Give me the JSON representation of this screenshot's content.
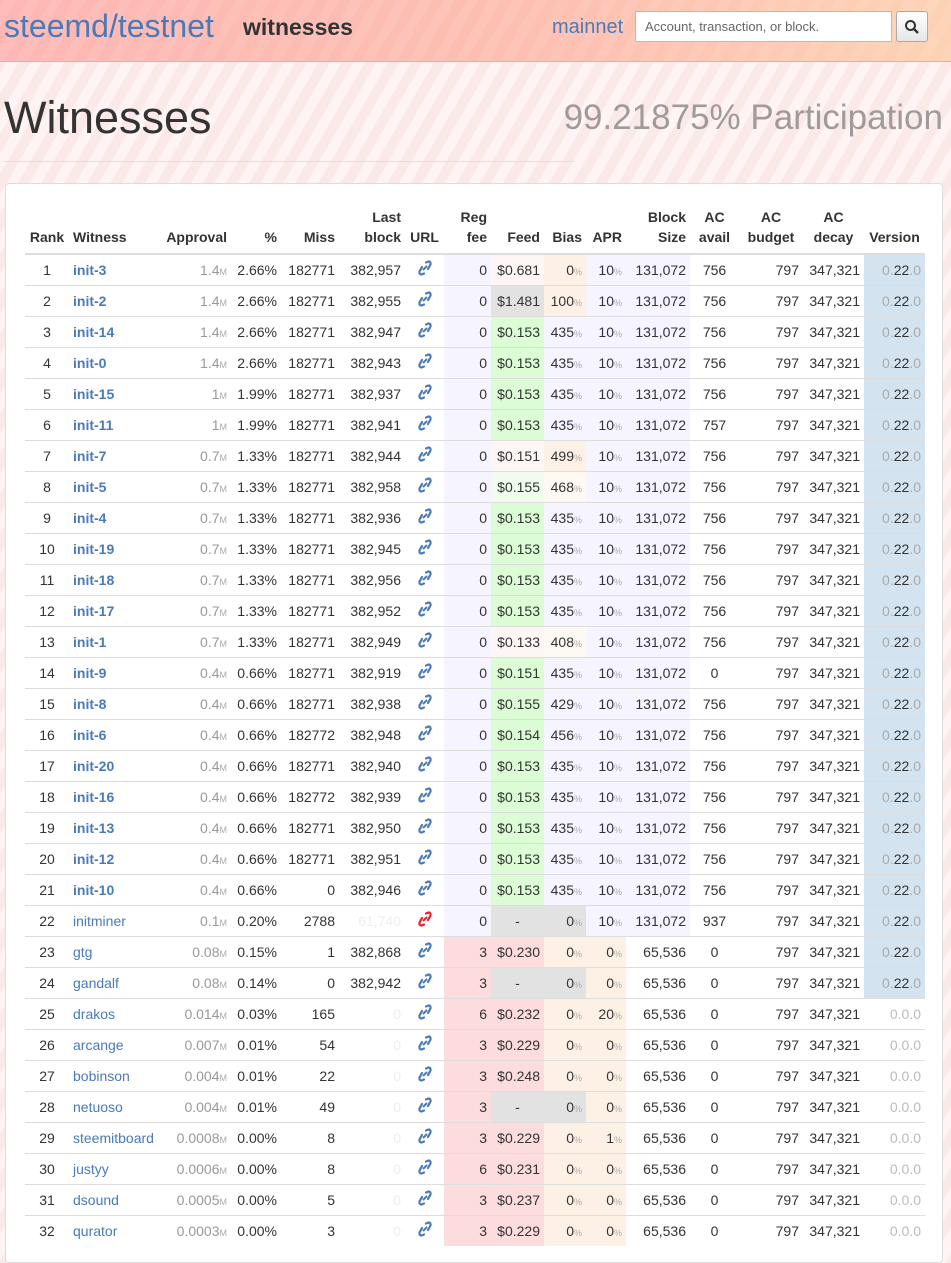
{
  "header": {
    "brand": "steemd/testnet",
    "section": "witnesses",
    "network_link": "mainnet",
    "search_placeholder": "Account, transaction, or block.",
    "search_icon": "search-icon"
  },
  "page": {
    "title": "Witnesses",
    "participation": "99.21875% Participation"
  },
  "colors": {
    "link": "#4a7ab8",
    "lavender": "#f5f4ff",
    "pink": "#fddcdd",
    "peach": "#fdf1e6",
    "faintpeach": "#fef8f2",
    "green": "#dcfcd6",
    "faintgreen": "#f0fdee",
    "faintpink": "#fdf6f4",
    "grey": "#e2e2e2",
    "blue": "#d3e4f0",
    "red": "#e8202a"
  },
  "table": {
    "headers": [
      "Rank",
      "Witness",
      "Approval",
      "%",
      "Miss",
      "Last block",
      "URL",
      "Reg fee",
      "Feed",
      "Bias",
      "APR",
      "Block Size",
      "AC avail",
      "AC budget",
      "AC decay",
      "Version"
    ],
    "unit_m": "M",
    "unit_pct": "%",
    "rows": [
      {
        "r": "1",
        "n": "init-3",
        "a": "1.4",
        "p": "2.66%",
        "m": "182771",
        "lb": "382,957",
        "f": "0",
        "fd": "$0.681",
        "fb": "faintpink",
        "bi": "0",
        "bb": "peach",
        "apr": "10",
        "bs": "131,072",
        "av": "756",
        "bu": "797",
        "de": "347,321",
        "v": [
          "0.",
          "22",
          ".0"
        ]
      },
      {
        "r": "2",
        "n": "init-2",
        "a": "1.4",
        "p": "2.66%",
        "m": "182771",
        "lb": "382,955",
        "f": "0",
        "fd": "$1.481",
        "fb": "grey",
        "bi": "100",
        "bb": "peach",
        "apr": "10",
        "bs": "131,072",
        "av": "756",
        "bu": "797",
        "de": "347,321",
        "v": [
          "0.",
          "22",
          ".0"
        ]
      },
      {
        "r": "3",
        "n": "init-14",
        "a": "1.4",
        "p": "2.66%",
        "m": "182771",
        "lb": "382,947",
        "f": "0",
        "fd": "$0.153",
        "fb": "green",
        "bi": "435",
        "bb": "lavender",
        "apr": "10",
        "bs": "131,072",
        "av": "756",
        "bu": "797",
        "de": "347,321",
        "v": [
          "0.",
          "22",
          ".0"
        ]
      },
      {
        "r": "4",
        "n": "init-0",
        "a": "1.4",
        "p": "2.66%",
        "m": "182771",
        "lb": "382,943",
        "f": "0",
        "fd": "$0.153",
        "fb": "green",
        "bi": "435",
        "bb": "lavender",
        "apr": "10",
        "bs": "131,072",
        "av": "756",
        "bu": "797",
        "de": "347,321",
        "v": [
          "0.",
          "22",
          ".0"
        ]
      },
      {
        "r": "5",
        "n": "init-15",
        "a": "1",
        "p": "1.99%",
        "m": "182771",
        "lb": "382,937",
        "f": "0",
        "fd": "$0.153",
        "fb": "green",
        "bi": "435",
        "bb": "lavender",
        "apr": "10",
        "bs": "131,072",
        "av": "756",
        "bu": "797",
        "de": "347,321",
        "v": [
          "0.",
          "22",
          ".0"
        ]
      },
      {
        "r": "6",
        "n": "init-11",
        "a": "1",
        "p": "1.99%",
        "m": "182771",
        "lb": "382,941",
        "f": "0",
        "fd": "$0.153",
        "fb": "green",
        "bi": "435",
        "bb": "lavender",
        "apr": "10",
        "bs": "131,072",
        "av": "757",
        "bu": "797",
        "de": "347,321",
        "v": [
          "0.",
          "22",
          ".0"
        ]
      },
      {
        "r": "7",
        "n": "init-7",
        "a": "0.7",
        "p": "1.33%",
        "m": "182771",
        "lb": "382,944",
        "f": "0",
        "fd": "$0.151",
        "fb": "faintpink",
        "bi": "499",
        "bb": "peach",
        "apr": "10",
        "bs": "131,072",
        "av": "756",
        "bu": "797",
        "de": "347,321",
        "v": [
          "0.",
          "22",
          ".0"
        ]
      },
      {
        "r": "8",
        "n": "init-5",
        "a": "0.7",
        "p": "1.33%",
        "m": "182771",
        "lb": "382,958",
        "f": "0",
        "fd": "$0.155",
        "fb": "faintgreen",
        "bi": "468",
        "bb": "faintpeach",
        "apr": "10",
        "bs": "131,072",
        "av": "756",
        "bu": "797",
        "de": "347,321",
        "v": [
          "0.",
          "22",
          ".0"
        ]
      },
      {
        "r": "9",
        "n": "init-4",
        "a": "0.7",
        "p": "1.33%",
        "m": "182771",
        "lb": "382,936",
        "f": "0",
        "fd": "$0.153",
        "fb": "green",
        "bi": "435",
        "bb": "lavender",
        "apr": "10",
        "bs": "131,072",
        "av": "756",
        "bu": "797",
        "de": "347,321",
        "v": [
          "0.",
          "22",
          ".0"
        ]
      },
      {
        "r": "10",
        "n": "init-19",
        "a": "0.7",
        "p": "1.33%",
        "m": "182771",
        "lb": "382,945",
        "f": "0",
        "fd": "$0.153",
        "fb": "green",
        "bi": "435",
        "bb": "lavender",
        "apr": "10",
        "bs": "131,072",
        "av": "756",
        "bu": "797",
        "de": "347,321",
        "v": [
          "0.",
          "22",
          ".0"
        ]
      },
      {
        "r": "11",
        "n": "init-18",
        "a": "0.7",
        "p": "1.33%",
        "m": "182771",
        "lb": "382,956",
        "f": "0",
        "fd": "$0.153",
        "fb": "green",
        "bi": "435",
        "bb": "lavender",
        "apr": "10",
        "bs": "131,072",
        "av": "756",
        "bu": "797",
        "de": "347,321",
        "v": [
          "0.",
          "22",
          ".0"
        ]
      },
      {
        "r": "12",
        "n": "init-17",
        "a": "0.7",
        "p": "1.33%",
        "m": "182771",
        "lb": "382,952",
        "f": "0",
        "fd": "$0.153",
        "fb": "green",
        "bi": "435",
        "bb": "lavender",
        "apr": "10",
        "bs": "131,072",
        "av": "756",
        "bu": "797",
        "de": "347,321",
        "v": [
          "0.",
          "22",
          ".0"
        ]
      },
      {
        "r": "13",
        "n": "init-1",
        "a": "0.7",
        "p": "1.33%",
        "m": "182771",
        "lb": "382,949",
        "f": "0",
        "fd": "$0.133",
        "fb": "faintpink",
        "bi": "408",
        "bb": "faintpeach",
        "apr": "10",
        "bs": "131,072",
        "av": "756",
        "bu": "797",
        "de": "347,321",
        "v": [
          "0.",
          "22",
          ".0"
        ]
      },
      {
        "r": "14",
        "n": "init-9",
        "a": "0.4",
        "p": "0.66%",
        "m": "182771",
        "lb": "382,919",
        "f": "0",
        "fd": "$0.151",
        "fb": "green",
        "bi": "435",
        "bb": "lavender",
        "apr": "10",
        "bs": "131,072",
        "av": "0",
        "bu": "797",
        "de": "347,321",
        "v": [
          "0.",
          "22",
          ".0"
        ]
      },
      {
        "r": "15",
        "n": "init-8",
        "a": "0.4",
        "p": "0.66%",
        "m": "182771",
        "lb": "382,938",
        "f": "0",
        "fd": "$0.155",
        "fb": "green",
        "bi": "429",
        "bb": "lavender",
        "apr": "10",
        "bs": "131,072",
        "av": "756",
        "bu": "797",
        "de": "347,321",
        "v": [
          "0.",
          "22",
          ".0"
        ]
      },
      {
        "r": "16",
        "n": "init-6",
        "a": "0.4",
        "p": "0.66%",
        "m": "182772",
        "lb": "382,948",
        "f": "0",
        "fd": "$0.154",
        "fb": "green",
        "bi": "456",
        "bb": "lavender",
        "apr": "10",
        "bs": "131,072",
        "av": "756",
        "bu": "797",
        "de": "347,321",
        "v": [
          "0.",
          "22",
          ".0"
        ]
      },
      {
        "r": "17",
        "n": "init-20",
        "a": "0.4",
        "p": "0.66%",
        "m": "182771",
        "lb": "382,940",
        "f": "0",
        "fd": "$0.153",
        "fb": "green",
        "bi": "435",
        "bb": "lavender",
        "apr": "10",
        "bs": "131,072",
        "av": "756",
        "bu": "797",
        "de": "347,321",
        "v": [
          "0.",
          "22",
          ".0"
        ]
      },
      {
        "r": "18",
        "n": "init-16",
        "a": "0.4",
        "p": "0.66%",
        "m": "182772",
        "lb": "382,939",
        "f": "0",
        "fd": "$0.153",
        "fb": "green",
        "bi": "435",
        "bb": "lavender",
        "apr": "10",
        "bs": "131,072",
        "av": "756",
        "bu": "797",
        "de": "347,321",
        "v": [
          "0.",
          "22",
          ".0"
        ]
      },
      {
        "r": "19",
        "n": "init-13",
        "a": "0.4",
        "p": "0.66%",
        "m": "182771",
        "lb": "382,950",
        "f": "0",
        "fd": "$0.153",
        "fb": "green",
        "bi": "435",
        "bb": "lavender",
        "apr": "10",
        "bs": "131,072",
        "av": "756",
        "bu": "797",
        "de": "347,321",
        "v": [
          "0.",
          "22",
          ".0"
        ]
      },
      {
        "r": "20",
        "n": "init-12",
        "a": "0.4",
        "p": "0.66%",
        "m": "182771",
        "lb": "382,951",
        "f": "0",
        "fd": "$0.153",
        "fb": "green",
        "bi": "435",
        "bb": "lavender",
        "apr": "10",
        "bs": "131,072",
        "av": "756",
        "bu": "797",
        "de": "347,321",
        "v": [
          "0.",
          "22",
          ".0"
        ]
      },
      {
        "r": "21",
        "n": "init-10",
        "a": "0.4",
        "p": "0.66%",
        "m": "0",
        "lb": "382,946",
        "f": "0",
        "fd": "$0.153",
        "fb": "green",
        "bi": "435",
        "bb": "lavender",
        "apr": "10",
        "bs": "131,072",
        "av": "756",
        "bu": "797",
        "de": "347,321",
        "v": [
          "0.",
          "22",
          ".0"
        ]
      },
      {
        "r": "22",
        "n": "initminer",
        "a": "0.1",
        "p": "0.20%",
        "m": "2788",
        "lb": "61,740",
        "stale": true,
        "f": "0",
        "fd": "-",
        "fb": "grey",
        "bi": "0",
        "bb": "grey",
        "apr": "10",
        "bs": "131,072",
        "av": "937",
        "bu": "797",
        "de": "347,321",
        "v": [
          "0.",
          "22",
          ".0"
        ]
      },
      {
        "r": "23",
        "n": "gtg",
        "a": "0.08",
        "p": "0.15%",
        "m": "1",
        "lb": "382,868",
        "f": "3",
        "fd": "$0.230",
        "fb": "pink",
        "bi": "0",
        "bb": "peach",
        "apr": "0",
        "bs": "65,536",
        "av": "0",
        "bu": "797",
        "de": "347,321",
        "v": [
          "0.",
          "22",
          ".0"
        ]
      },
      {
        "r": "24",
        "n": "gandalf",
        "a": "0.08",
        "p": "0.14%",
        "m": "0",
        "lb": "382,942",
        "f": "3",
        "fd": "-",
        "fb": "grey",
        "bi": "0",
        "bb": "grey",
        "apr": "0",
        "bs": "65,536",
        "av": "0",
        "bu": "797",
        "de": "347,321",
        "v": [
          "0.",
          "22",
          ".0"
        ]
      },
      {
        "r": "25",
        "n": "drakos",
        "a": "0.014",
        "p": "0.03%",
        "m": "165",
        "lb": "0",
        "stale": true,
        "f": "6",
        "fd": "$0.232",
        "fb": "pink",
        "bi": "0",
        "bb": "peach",
        "apr": "20",
        "bs": "65,536",
        "av": "0",
        "bu": "797",
        "de": "347,321",
        "v": [
          "0.0.0"
        ]
      },
      {
        "r": "26",
        "n": "arcange",
        "a": "0.007",
        "p": "0.01%",
        "m": "54",
        "lb": "0",
        "stale": true,
        "f": "3",
        "fd": "$0.229",
        "fb": "pink",
        "bi": "0",
        "bb": "peach",
        "apr": "0",
        "bs": "65,536",
        "av": "0",
        "bu": "797",
        "de": "347,321",
        "v": [
          "0.0.0"
        ]
      },
      {
        "r": "27",
        "n": "bobinson",
        "a": "0.004",
        "p": "0.01%",
        "m": "22",
        "lb": "0",
        "stale": true,
        "f": "3",
        "fd": "$0.248",
        "fb": "pink",
        "bi": "0",
        "bb": "peach",
        "apr": "0",
        "bs": "65,536",
        "av": "0",
        "bu": "797",
        "de": "347,321",
        "v": [
          "0.0.0"
        ]
      },
      {
        "r": "28",
        "n": "netuoso",
        "a": "0.004",
        "p": "0.01%",
        "m": "49",
        "lb": "0",
        "stale": true,
        "f": "3",
        "fd": "-",
        "fb": "grey",
        "bi": "0",
        "bb": "grey",
        "apr": "0",
        "bs": "65,536",
        "av": "0",
        "bu": "797",
        "de": "347,321",
        "v": [
          "0.0.0"
        ]
      },
      {
        "r": "29",
        "n": "steemitboard",
        "a": "0.0008",
        "p": "0.00%",
        "m": "8",
        "lb": "0",
        "stale": true,
        "f": "3",
        "fd": "$0.229",
        "fb": "pink",
        "bi": "0",
        "bb": "peach",
        "apr": "1",
        "bs": "65,536",
        "av": "0",
        "bu": "797",
        "de": "347,321",
        "v": [
          "0.0.0"
        ]
      },
      {
        "r": "30",
        "n": "justyy",
        "a": "0.0006",
        "p": "0.00%",
        "m": "8",
        "lb": "0",
        "stale": true,
        "f": "6",
        "fd": "$0.231",
        "fb": "pink",
        "bi": "0",
        "bb": "peach",
        "apr": "0",
        "bs": "65,536",
        "av": "0",
        "bu": "797",
        "de": "347,321",
        "v": [
          "0.0.0"
        ]
      },
      {
        "r": "31",
        "n": "dsound",
        "a": "0.0005",
        "p": "0.00%",
        "m": "5",
        "lb": "0",
        "stale": true,
        "f": "3",
        "fd": "$0.237",
        "fb": "pink",
        "bi": "0",
        "bb": "peach",
        "apr": "0",
        "bs": "65,536",
        "av": "0",
        "bu": "797",
        "de": "347,321",
        "v": [
          "0.0.0"
        ]
      },
      {
        "r": "32",
        "n": "qurator",
        "a": "0.0003",
        "p": "0.00%",
        "m": "3",
        "lb": "0",
        "stale": true,
        "f": "3",
        "fd": "$0.229",
        "fb": "pink",
        "bi": "0",
        "bb": "peach",
        "apr": "0",
        "bs": "65,536",
        "av": "0",
        "bu": "797",
        "de": "347,321",
        "v": [
          "0.0.0"
        ]
      }
    ]
  }
}
